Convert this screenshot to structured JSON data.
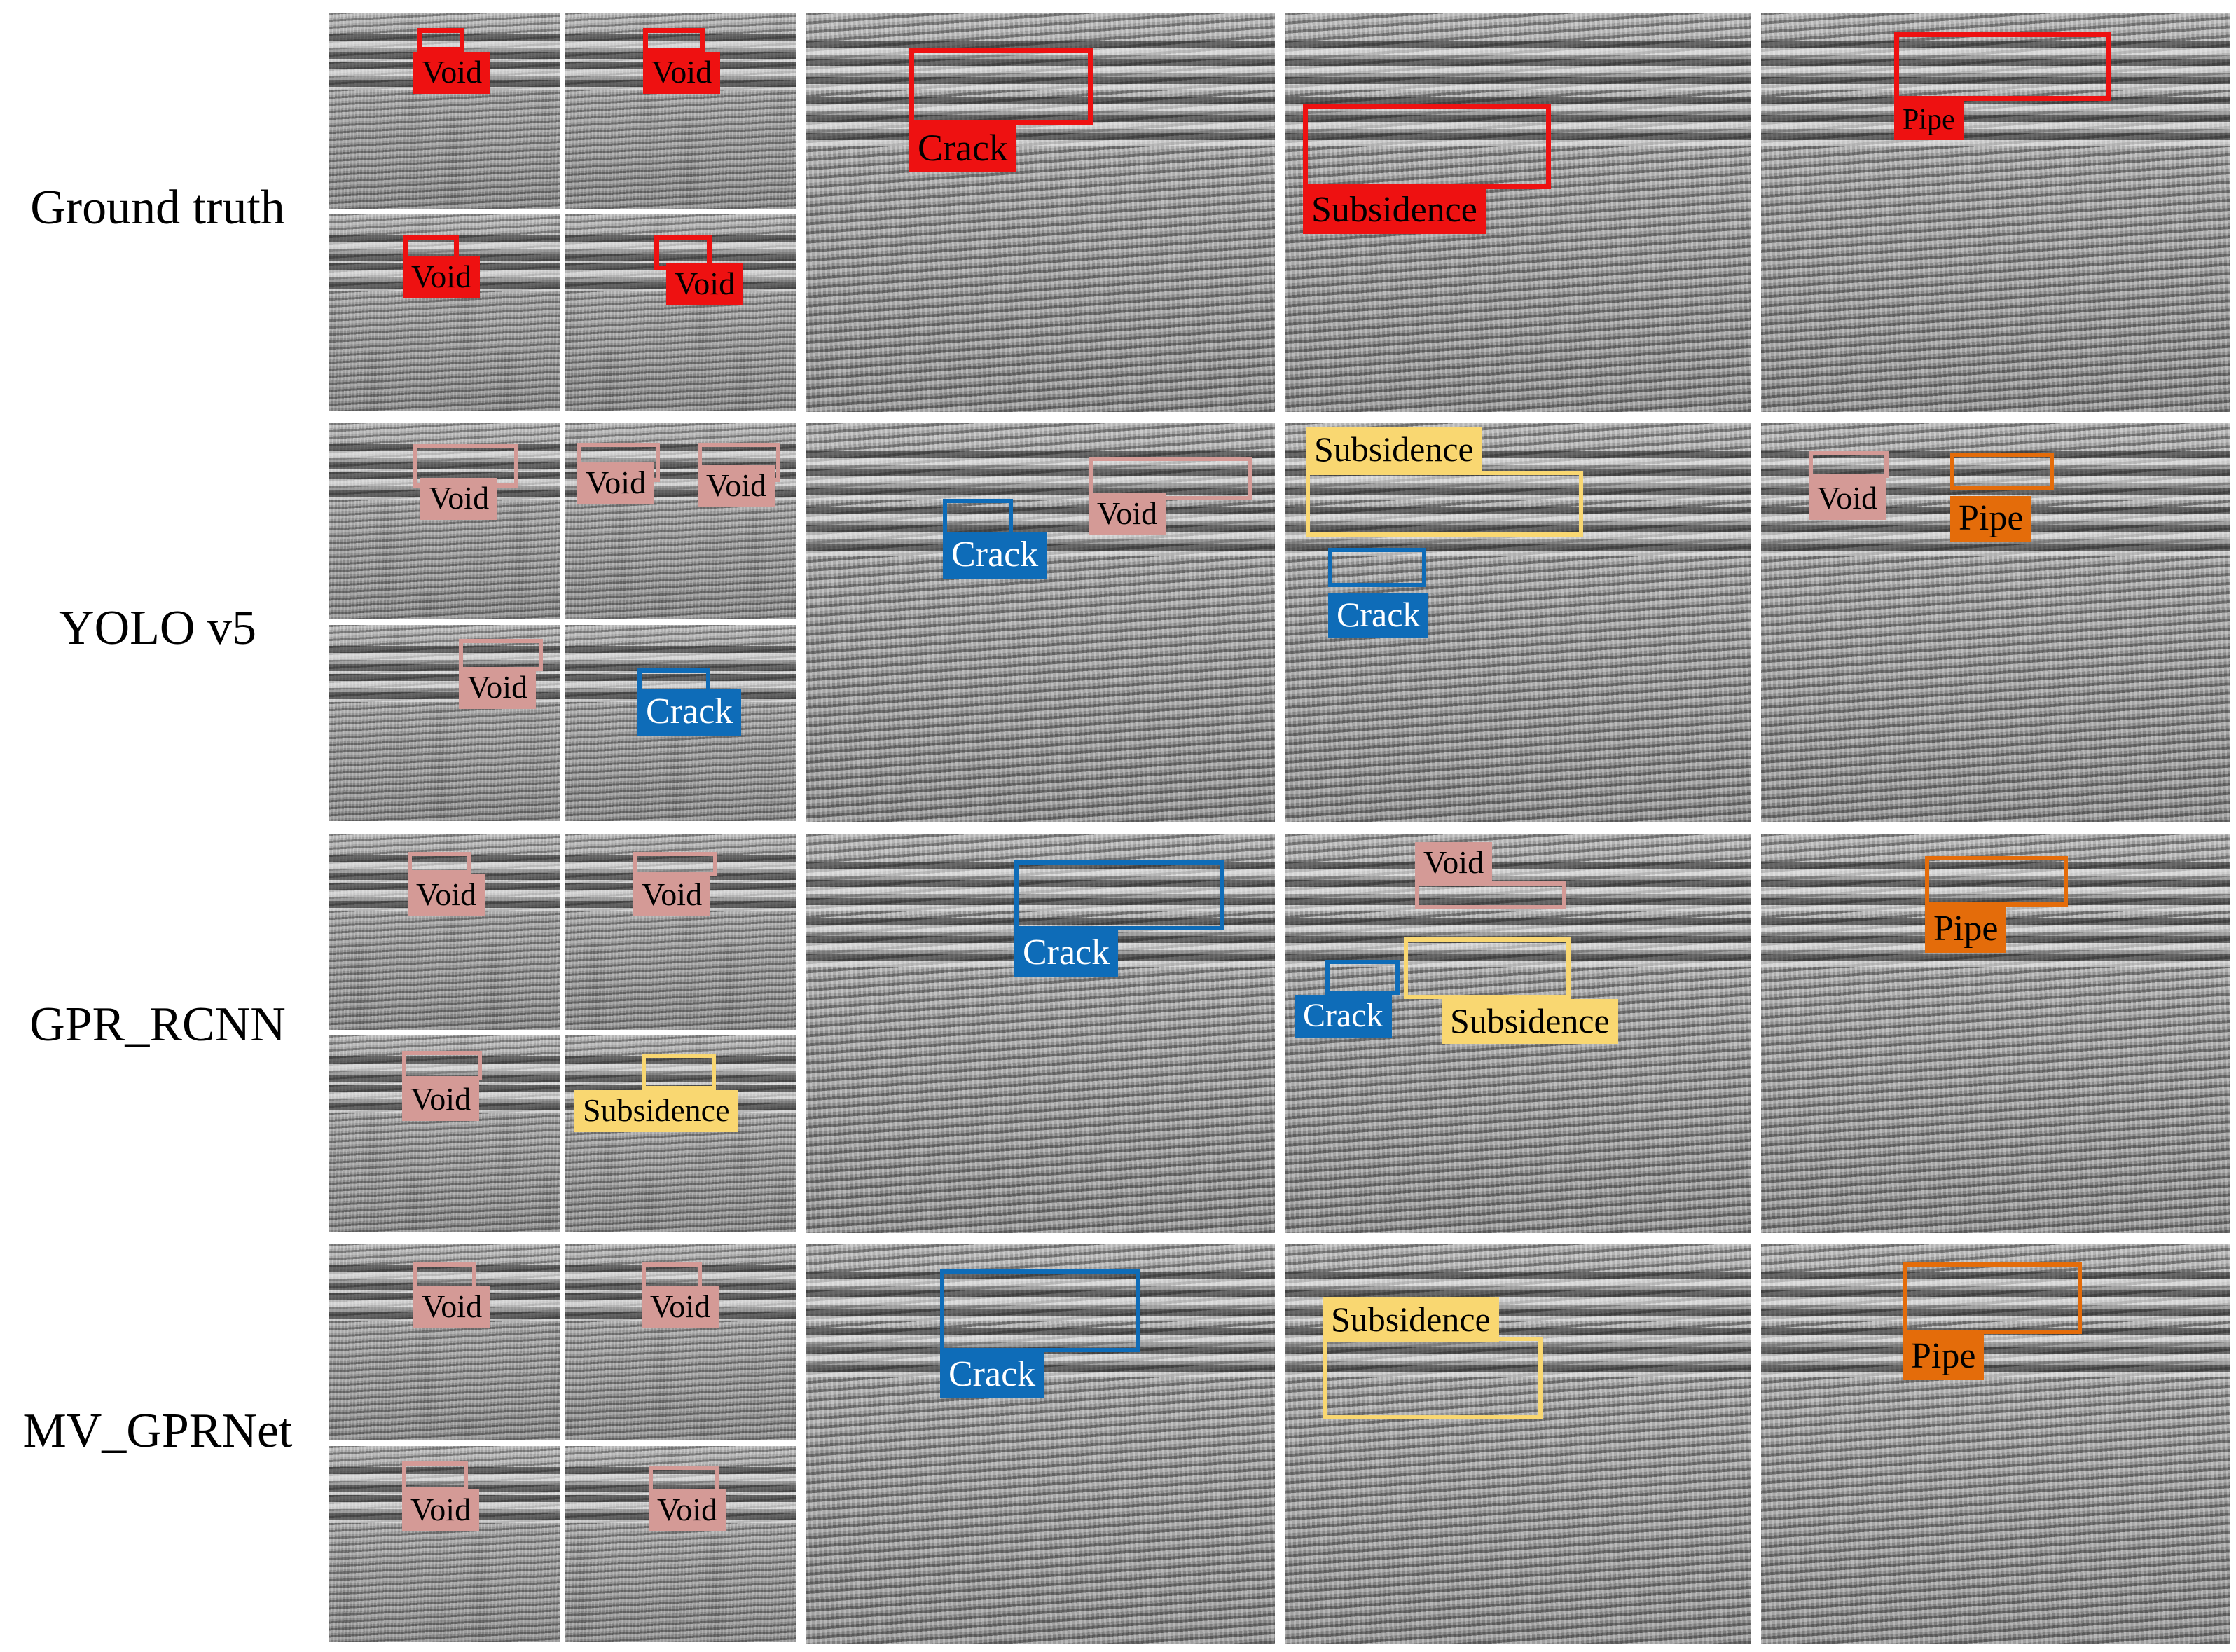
{
  "rows": [
    {
      "label": "Ground truth"
    },
    {
      "label": "YOLO v5"
    },
    {
      "label": "GPR_RCNN"
    },
    {
      "label": "MV_GPRNet"
    }
  ],
  "labels": {
    "void": "Void",
    "crack": "Crack",
    "subsidence": "Subsidence",
    "pipe": "Pipe"
  },
  "colors": {
    "ground_truth": "#ee1111",
    "void": "#d49a96",
    "crack": "#0e6cb8",
    "subsidence": "#f9d771",
    "pipe": "#e46c0a",
    "label_text_light": "#ffffff",
    "label_text_dark": "#000000"
  }
}
